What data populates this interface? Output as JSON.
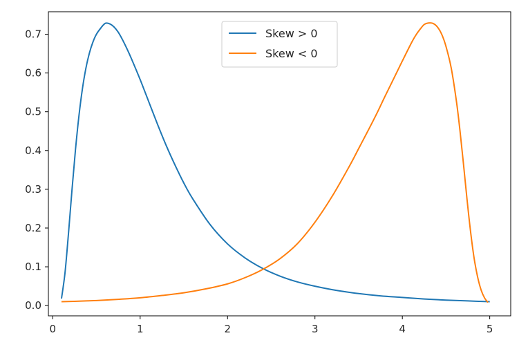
{
  "chart_data": {
    "type": "line",
    "xlim": [
      -0.05,
      5.24
    ],
    "ylim": [
      -0.0265,
      0.758
    ],
    "x_ticks": [
      0,
      1,
      2,
      3,
      4,
      5
    ],
    "y_ticks": [
      0.0,
      0.1,
      0.2,
      0.3,
      0.4,
      0.5,
      0.6,
      0.7
    ],
    "x_tick_labels": [
      "0",
      "1",
      "2",
      "3",
      "4",
      "5"
    ],
    "y_tick_labels": [
      "0.0",
      "0.1",
      "0.2",
      "0.3",
      "0.4",
      "0.5",
      "0.6",
      "0.7"
    ],
    "legend_position": "upper center",
    "grid": false,
    "series": [
      {
        "name": "Skew > 0",
        "color": "#1f77b4",
        "x": [
          0.1,
          0.14,
          0.18,
          0.22,
          0.26,
          0.3,
          0.34,
          0.38,
          0.42,
          0.46,
          0.5,
          0.55,
          0.6,
          0.65,
          0.7,
          0.75,
          0.8,
          0.85,
          0.9,
          1.0,
          1.1,
          1.2,
          1.3,
          1.4,
          1.5,
          1.6,
          1.8,
          2.0,
          2.2,
          2.4,
          2.6,
          2.8,
          3.0,
          3.25,
          3.5,
          3.75,
          4.0,
          4.25,
          4.5,
          4.75,
          5.0
        ],
        "values": [
          0.018,
          0.084,
          0.186,
          0.298,
          0.402,
          0.49,
          0.56,
          0.613,
          0.652,
          0.68,
          0.7,
          0.716,
          0.728,
          0.727,
          0.719,
          0.705,
          0.685,
          0.662,
          0.637,
          0.583,
          0.525,
          0.467,
          0.412,
          0.362,
          0.316,
          0.276,
          0.209,
          0.159,
          0.123,
          0.096,
          0.076,
          0.061,
          0.05,
          0.039,
          0.031,
          0.025,
          0.021,
          0.017,
          0.014,
          0.012,
          0.01
        ]
      },
      {
        "name": "Skew < 0",
        "color": "#ff7f0e",
        "x": [
          0.1,
          0.25,
          0.5,
          0.75,
          1.0,
          1.25,
          1.5,
          1.75,
          2.0,
          2.2,
          2.4,
          2.6,
          2.8,
          3.0,
          3.2,
          3.4,
          3.5,
          3.6,
          3.7,
          3.8,
          3.9,
          4.0,
          4.1,
          4.15,
          4.2,
          4.25,
          4.3,
          4.35,
          4.4,
          4.45,
          4.5,
          4.56,
          4.62,
          4.66,
          4.7,
          4.74,
          4.78,
          4.82,
          4.86,
          4.9,
          4.94,
          4.98
        ],
        "values": [
          0.01,
          0.011,
          0.013,
          0.016,
          0.02,
          0.026,
          0.033,
          0.043,
          0.056,
          0.072,
          0.093,
          0.121,
          0.16,
          0.215,
          0.283,
          0.362,
          0.405,
          0.448,
          0.492,
          0.539,
          0.585,
          0.631,
          0.676,
          0.696,
          0.712,
          0.725,
          0.729,
          0.728,
          0.719,
          0.7,
          0.668,
          0.612,
          0.525,
          0.45,
          0.364,
          0.274,
          0.192,
          0.124,
          0.075,
          0.041,
          0.02,
          0.008
        ]
      }
    ]
  }
}
